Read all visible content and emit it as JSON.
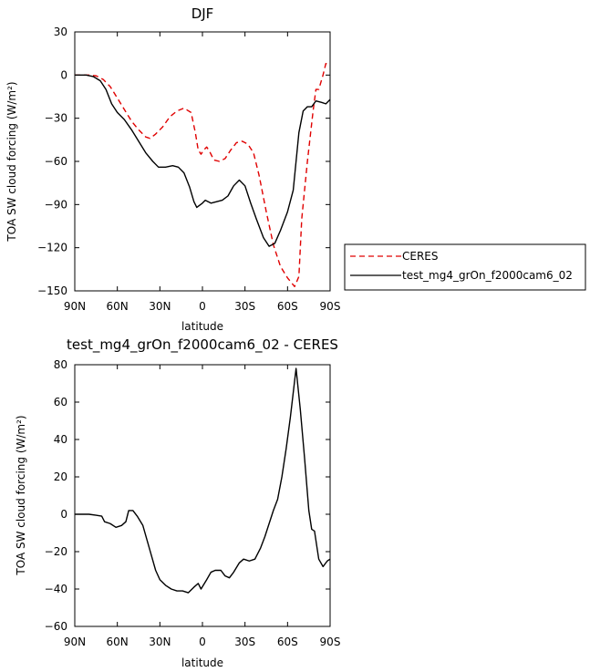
{
  "chart_data": [
    {
      "type": "line",
      "title": "DJF",
      "xlabel": "latitude",
      "ylabel": "TOA SW cloud forcing (W/m²)",
      "xlim": [
        90,
        -90
      ],
      "ylim": [
        -150,
        30
      ],
      "x_ticks": [
        {
          "value": 90,
          "label": "90N"
        },
        {
          "value": 60,
          "label": "60N"
        },
        {
          "value": 30,
          "label": "30N"
        },
        {
          "value": 0,
          "label": "0"
        },
        {
          "value": -30,
          "label": "30S"
        },
        {
          "value": -60,
          "label": "60S"
        },
        {
          "value": -90,
          "label": "90S"
        }
      ],
      "y_ticks": [
        30,
        0,
        -30,
        -60,
        -90,
        -120,
        -150
      ],
      "legend_position": "right",
      "series": [
        {
          "name": "CERES",
          "color": "#e00000",
          "dash": "dashed",
          "points": [
            [
              90,
              0
            ],
            [
              80,
              0
            ],
            [
              75,
              -0.5
            ],
            [
              70,
              -3
            ],
            [
              65,
              -8
            ],
            [
              60,
              -16
            ],
            [
              55,
              -24
            ],
            [
              50,
              -32
            ],
            [
              45,
              -38
            ],
            [
              40,
              -43
            ],
            [
              37,
              -44
            ],
            [
              33,
              -41
            ],
            [
              28,
              -36
            ],
            [
              23,
              -29
            ],
            [
              18,
              -25
            ],
            [
              13,
              -23
            ],
            [
              8,
              -26
            ],
            [
              5,
              -40
            ],
            [
              3,
              -52
            ],
            [
              1,
              -55
            ],
            [
              -1,
              -52
            ],
            [
              -3,
              -50
            ],
            [
              -5,
              -53
            ],
            [
              -8,
              -59
            ],
            [
              -12,
              -60
            ],
            [
              -16,
              -58
            ],
            [
              -20,
              -52
            ],
            [
              -24,
              -47
            ],
            [
              -28,
              -46
            ],
            [
              -32,
              -48
            ],
            [
              -36,
              -54
            ],
            [
              -40,
              -70
            ],
            [
              -45,
              -95
            ],
            [
              -50,
              -118
            ],
            [
              -55,
              -133
            ],
            [
              -60,
              -141
            ],
            [
              -65,
              -147
            ],
            [
              -68,
              -140
            ],
            [
              -70,
              -100
            ],
            [
              -74,
              -60
            ],
            [
              -78,
              -25
            ],
            [
              -80,
              -10
            ],
            [
              -82,
              -10
            ],
            [
              -85,
              0
            ],
            [
              -87,
              8
            ],
            [
              -90,
              7
            ]
          ]
        },
        {
          "name": "test_mg4_grOn_f2000cam6_02",
          "color": "#000000",
          "dash": "solid",
          "points": [
            [
              90,
              0
            ],
            [
              82,
              0
            ],
            [
              77,
              -1
            ],
            [
              72,
              -4
            ],
            [
              68,
              -10
            ],
            [
              64,
              -20
            ],
            [
              60,
              -26
            ],
            [
              55,
              -31
            ],
            [
              50,
              -38
            ],
            [
              45,
              -46
            ],
            [
              40,
              -54
            ],
            [
              35,
              -60
            ],
            [
              31,
              -64
            ],
            [
              26,
              -64
            ],
            [
              21,
              -63
            ],
            [
              17,
              -64
            ],
            [
              13,
              -68
            ],
            [
              9,
              -78
            ],
            [
              6,
              -88
            ],
            [
              4,
              -92
            ],
            [
              0,
              -89
            ],
            [
              -2,
              -87
            ],
            [
              -6,
              -89
            ],
            [
              -10,
              -88
            ],
            [
              -14,
              -87
            ],
            [
              -18,
              -84
            ],
            [
              -22,
              -77
            ],
            [
              -26,
              -73
            ],
            [
              -30,
              -77
            ],
            [
              -34,
              -89
            ],
            [
              -38,
              -100
            ],
            [
              -43,
              -113
            ],
            [
              -47,
              -119
            ],
            [
              -51,
              -117
            ],
            [
              -55,
              -108
            ],
            [
              -60,
              -95
            ],
            [
              -64,
              -80
            ],
            [
              -68,
              -40
            ],
            [
              -71,
              -25
            ],
            [
              -74,
              -22
            ],
            [
              -77,
              -22
            ],
            [
              -80,
              -18
            ],
            [
              -84,
              -19
            ],
            [
              -87,
              -20
            ],
            [
              -90,
              -17
            ]
          ]
        }
      ]
    },
    {
      "type": "line",
      "title": "test_mg4_grOn_f2000cam6_02 - CERES",
      "xlabel": "latitude",
      "ylabel": "TOA SW cloud forcing (W/m²)",
      "xlim": [
        90,
        -90
      ],
      "ylim": [
        -60,
        80
      ],
      "x_ticks": [
        {
          "value": 90,
          "label": "90N"
        },
        {
          "value": 60,
          "label": "60N"
        },
        {
          "value": 30,
          "label": "30N"
        },
        {
          "value": 0,
          "label": "0"
        },
        {
          "value": -30,
          "label": "30S"
        },
        {
          "value": -60,
          "label": "60S"
        },
        {
          "value": -90,
          "label": "90S"
        }
      ],
      "y_ticks": [
        80,
        60,
        40,
        20,
        0,
        -20,
        -40,
        -60
      ],
      "series": [
        {
          "color": "#000000",
          "dash": "solid",
          "points": [
            [
              90,
              0
            ],
            [
              80,
              0
            ],
            [
              75,
              -0.5
            ],
            [
              71,
              -1
            ],
            [
              69,
              -4
            ],
            [
              65,
              -5
            ],
            [
              61,
              -7
            ],
            [
              57,
              -6
            ],
            [
              54,
              -4
            ],
            [
              52,
              2
            ],
            [
              49,
              2
            ],
            [
              46,
              -1
            ],
            [
              42,
              -6
            ],
            [
              39,
              -14
            ],
            [
              36,
              -22
            ],
            [
              33,
              -30
            ],
            [
              30,
              -35
            ],
            [
              26,
              -38
            ],
            [
              22,
              -40
            ],
            [
              18,
              -41
            ],
            [
              14,
              -41
            ],
            [
              10,
              -42
            ],
            [
              6,
              -39
            ],
            [
              3,
              -37
            ],
            [
              1,
              -40
            ],
            [
              -3,
              -35
            ],
            [
              -6,
              -31
            ],
            [
              -9,
              -30
            ],
            [
              -13,
              -30
            ],
            [
              -16,
              -33
            ],
            [
              -19,
              -34
            ],
            [
              -22,
              -31
            ],
            [
              -26,
              -26
            ],
            [
              -29,
              -24
            ],
            [
              -33,
              -25
            ],
            [
              -37,
              -24
            ],
            [
              -41,
              -18
            ],
            [
              -44,
              -12
            ],
            [
              -47,
              -5
            ],
            [
              -50,
              2
            ],
            [
              -53,
              8
            ],
            [
              -56,
              20
            ],
            [
              -59,
              35
            ],
            [
              -62,
              52
            ],
            [
              -66,
              78
            ],
            [
              -69,
              56
            ],
            [
              -72,
              30
            ],
            [
              -75,
              2
            ],
            [
              -77,
              -8
            ],
            [
              -79,
              -9
            ],
            [
              -82,
              -24
            ],
            [
              -85,
              -28
            ],
            [
              -88,
              -25
            ],
            [
              -90,
              -24
            ]
          ]
        }
      ]
    }
  ]
}
